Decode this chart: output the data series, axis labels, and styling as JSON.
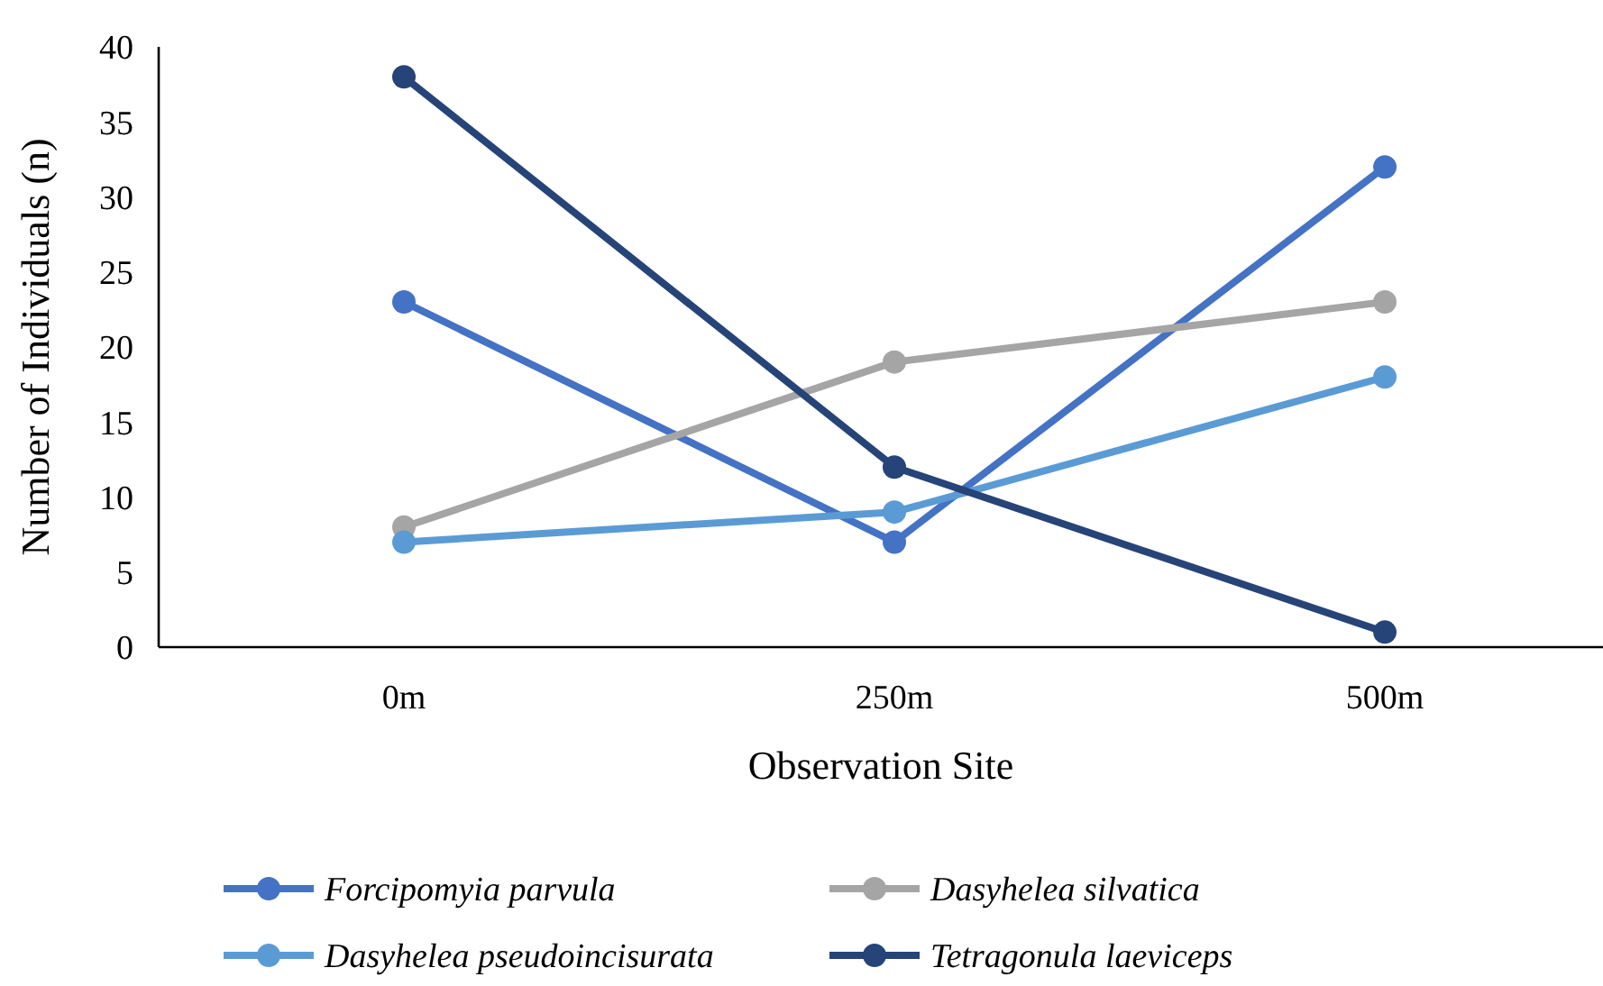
{
  "chart_data": {
    "type": "line",
    "xlabel": "Observation Site",
    "ylabel": "Number of Individuals (n)",
    "categories": [
      "0m",
      "250m",
      "500m"
    ],
    "ylim": [
      0,
      40
    ],
    "yticks": [
      0,
      5,
      10,
      15,
      20,
      25,
      30,
      35,
      40
    ],
    "grid": false,
    "legend": "bottom",
    "marker": "circle",
    "line_style": "solid",
    "series": [
      {
        "name": "Forcipomyia parvula",
        "color": "#4472c4",
        "values": [
          23,
          7,
          32
        ]
      },
      {
        "name": "Dasyhelea silvatica",
        "color": "#a5a5a5",
        "values": [
          8,
          19,
          23
        ]
      },
      {
        "name": "Dasyhelea pseudoincisurata",
        "color": "#5b9bd5",
        "values": [
          7,
          9,
          18
        ]
      },
      {
        "name": "Tetragonula laeviceps",
        "color": "#264478",
        "values": [
          38,
          12,
          1
        ]
      }
    ]
  }
}
